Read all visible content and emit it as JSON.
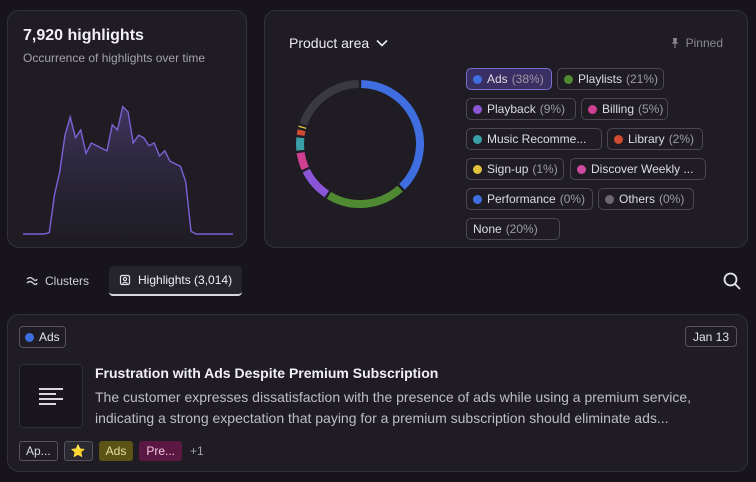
{
  "highlights_card": {
    "count_title": "7,920 highlights",
    "subtitle": "Occurrence of highlights over time",
    "chart_data": {
      "type": "area",
      "x": [
        0,
        1,
        2,
        3,
        4,
        5,
        6,
        7,
        8,
        9,
        10,
        11,
        12,
        13,
        14,
        15,
        16,
        17,
        18,
        19,
        20,
        21,
        22,
        23,
        24,
        25,
        26,
        27,
        28,
        29,
        30,
        31,
        32,
        33,
        34,
        35,
        36,
        37,
        38,
        39,
        40
      ],
      "series": [
        {
          "values": [
            0,
            0,
            0,
            0,
            0,
            1,
            30,
            48,
            76,
            90,
            74,
            80,
            62,
            70,
            68,
            66,
            64,
            84,
            80,
            98,
            94,
            70,
            76,
            74,
            68,
            70,
            60,
            64,
            56,
            54,
            52,
            40,
            2,
            0,
            0,
            0,
            0,
            0,
            0,
            0,
            0
          ]
        }
      ],
      "ylim": [
        0,
        100
      ]
    }
  },
  "product_card": {
    "dropdown_label": "Product area",
    "pinned_label": "Pinned",
    "chart_data": {
      "type": "pie",
      "categories": [
        "Ads",
        "Playlists",
        "Playback",
        "Billing",
        "Music Recommendations",
        "Library",
        "Sign-up",
        "Discover Weekly",
        "Performance",
        "Others",
        "None"
      ],
      "values": [
        38,
        21,
        9,
        5,
        4,
        2,
        1,
        0,
        0,
        0,
        20
      ],
      "colors": [
        "#3f6ee0",
        "#4f8a33",
        "#8a55d6",
        "#cf3f92",
        "#3aa0a8",
        "#d04a32",
        "#e2c33b",
        "#d04aa0",
        "#3f6ee0",
        "#6b6874",
        "#3a3841"
      ]
    },
    "legend": [
      {
        "name": "Ads",
        "pct": "(38%)",
        "color": "#3f6ee0"
      },
      {
        "name": "Playlists",
        "pct": "(21%)",
        "color": "#4f8a33"
      },
      {
        "name": "Playback",
        "pct": "(9%)",
        "color": "#8a55d6"
      },
      {
        "name": "Billing",
        "pct": "(5%)",
        "color": "#cf3f92"
      },
      {
        "name": "Music Recomme...",
        "pct": "",
        "color": "#3aa0a8"
      },
      {
        "name": "Library",
        "pct": "(2%)",
        "color": "#d04a32"
      },
      {
        "name": "Sign-up",
        "pct": "(1%)",
        "color": "#e2c33b"
      },
      {
        "name": "Discover Weekly ...",
        "pct": "",
        "color": "#d04aa0"
      },
      {
        "name": "Performance",
        "pct": "(0%)",
        "color": "#3f6ee0"
      },
      {
        "name": "Others",
        "pct": "(0%)",
        "color": "#6b6874"
      },
      {
        "name": "None",
        "pct": "(20%)",
        "color": ""
      }
    ]
  },
  "tabs": [
    {
      "label": "Clusters"
    },
    {
      "label": "Highlights (3,014)"
    }
  ],
  "item": {
    "tag": "Ads",
    "tag_color": "#3d6fe0",
    "date": "Jan 13",
    "title": "Frustration with Ads Despite Premium Subscription",
    "description": "The customer expresses dissatisfaction with the presence of ads while using a premium service, indicating a strong expectation that paying for a premium subscription should eliminate ads...",
    "footer_tags": [
      "Ap...",
      "⭐",
      "Ads",
      "Pre..."
    ],
    "more": "+1"
  }
}
